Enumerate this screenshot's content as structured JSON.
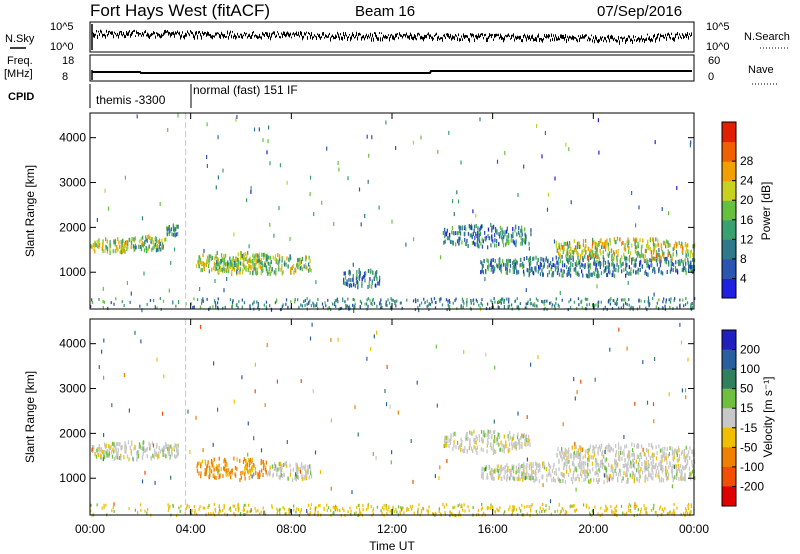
{
  "header": {
    "station": "Fort Hays West (fitACF)",
    "beam": "Beam 16",
    "date": "07/Sep/2016"
  },
  "top_panels": {
    "nsky_label": "N.Sky",
    "nsearch_label": "N.Search",
    "nsky_ticks": [
      "10^5",
      "10^0"
    ],
    "nsearch_ticks": [
      "10^5",
      "10^0"
    ],
    "freq_label": "Freq.",
    "freq_unit": "[MHz]",
    "freq_ticks": [
      "18",
      "8"
    ],
    "nave_label": "Nave",
    "nave_ticks": [
      "60",
      "0"
    ],
    "cpid_label": "CPID",
    "cpid_segments": [
      "themis -3300",
      "normal (fast) 151 IF"
    ]
  },
  "chart_data": [
    {
      "type": "heatmap",
      "name": "power",
      "ylabel": "Slant Range [km]",
      "xlabel": "",
      "x_ticks": [
        "00:00",
        "04:00",
        "08:00",
        "12:00",
        "16:00",
        "20:00",
        "00:00"
      ],
      "xlim_hours": [
        0,
        24
      ],
      "ylim": [
        180,
        4550
      ],
      "y_ticks": [
        1000,
        2000,
        3000,
        4000
      ],
      "colorbar": {
        "label": "Power [dB]",
        "ticks": [
          "4",
          "8",
          "12",
          "16",
          "20",
          "24",
          "28"
        ],
        "colors": [
          "#2020e0",
          "#2a55b0",
          "#2f7a8a",
          "#3aa070",
          "#66c040",
          "#c8d020",
          "#f0a000",
          "#f06000",
          "#e02000"
        ]
      },
      "scatter_regions": [
        {
          "t": [
            0.0,
            1.5
          ],
          "range": [
            1450,
            1800
          ],
          "power": 20
        },
        {
          "t": [
            1.5,
            3.0
          ],
          "range": [
            1500,
            1850
          ],
          "power": 18
        },
        {
          "t": [
            3.0,
            3.5
          ],
          "range": [
            1850,
            2100
          ],
          "power": 12
        },
        {
          "t": [
            4.2,
            7.0
          ],
          "range": [
            1000,
            1500
          ],
          "power": 20
        },
        {
          "t": [
            5.0,
            8.8
          ],
          "range": [
            1000,
            1450
          ],
          "power": 18
        },
        {
          "t": [
            10.0,
            11.5
          ],
          "range": [
            700,
            1100
          ],
          "power": 10
        },
        {
          "t": [
            14.0,
            17.5
          ],
          "range": [
            1600,
            2100
          ],
          "power": 10
        },
        {
          "t": [
            15.5,
            24.0
          ],
          "range": [
            950,
            1400
          ],
          "power": 10
        },
        {
          "t": [
            18.5,
            24.0
          ],
          "range": [
            1300,
            1800
          ],
          "power": 22
        }
      ]
    },
    {
      "type": "heatmap",
      "name": "velocity",
      "ylabel": "Slant Range [km]",
      "xlabel": "Time UT",
      "x_ticks": [
        "00:00",
        "04:00",
        "08:00",
        "12:00",
        "16:00",
        "20:00",
        "00:00"
      ],
      "xlim_hours": [
        0,
        24
      ],
      "ylim": [
        180,
        4550
      ],
      "y_ticks": [
        1000,
        2000,
        3000,
        4000
      ],
      "colorbar": {
        "label": "Velocity [m s⁻¹]",
        "ticks": [
          "200",
          "100",
          "50",
          "15",
          "-15",
          "-50",
          "-100",
          "-200"
        ],
        "colors": [
          "#2020c0",
          "#2a60a0",
          "#308060",
          "#70c040",
          "#c8c8c8",
          "#f0c000",
          "#f08000",
          "#f05000",
          "#e00000"
        ]
      },
      "scatter_regions": [
        {
          "t": [
            0.0,
            3.5
          ],
          "range": [
            1450,
            1850
          ],
          "velocity": 0
        },
        {
          "t": [
            4.2,
            7.0
          ],
          "range": [
            1000,
            1500
          ],
          "velocity": -60
        },
        {
          "t": [
            7.0,
            8.8
          ],
          "range": [
            1000,
            1400
          ],
          "velocity": 0
        },
        {
          "t": [
            14.0,
            17.5
          ],
          "range": [
            1600,
            2100
          ],
          "velocity": 0
        },
        {
          "t": [
            15.5,
            24.0
          ],
          "range": [
            950,
            1400
          ],
          "velocity": 0
        },
        {
          "t": [
            18.5,
            24.0
          ],
          "range": [
            1300,
            1800
          ],
          "velocity": 0
        }
      ]
    }
  ]
}
